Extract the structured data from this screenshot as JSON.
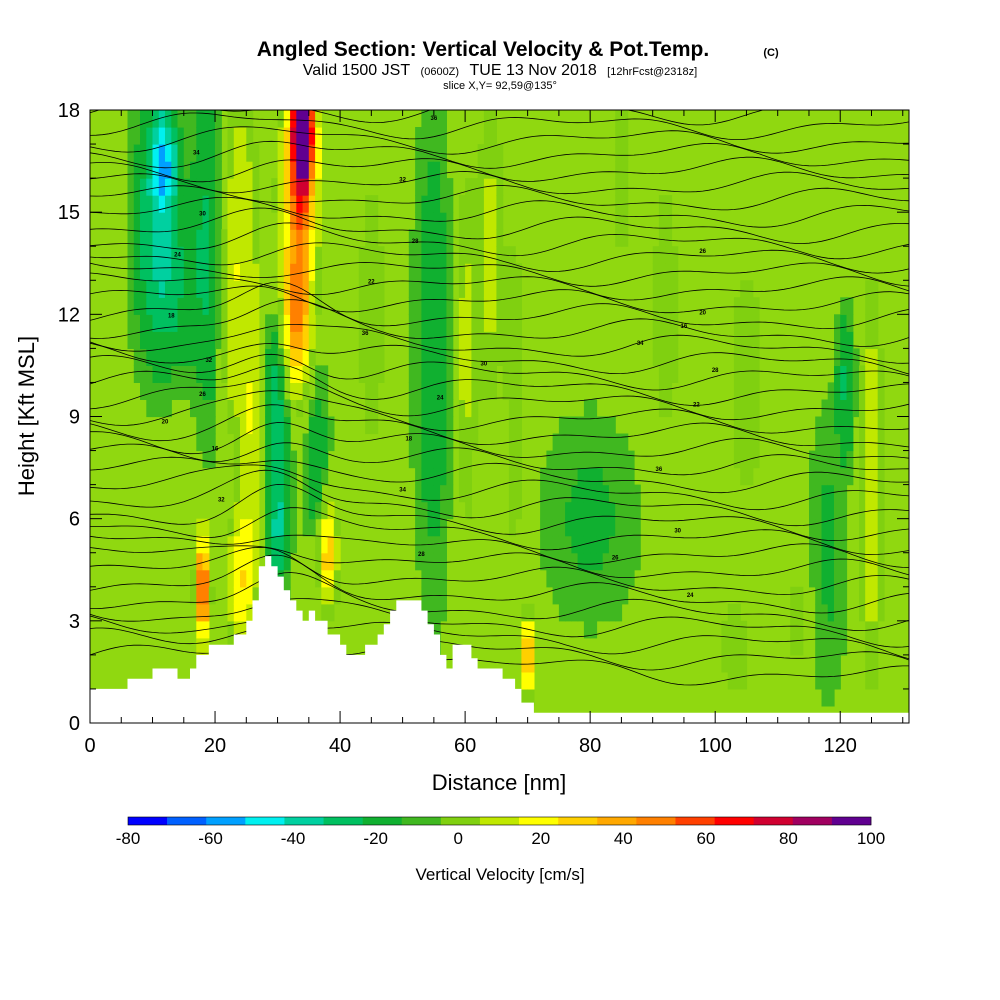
{
  "chart_data": {
    "type": "heatmap",
    "title": "Angled Section: Vertical Velocity & Pot.Temp.",
    "title_mark": "(C)",
    "subtitle": {
      "part1": "Valid 1500 JST",
      "part2": "(0600Z)",
      "part3": "TUE 13 Nov 2018",
      "part4": "[12hrFcst@2318z]"
    },
    "slice_label": "slice X,Y= 92,59@135°",
    "xlabel": "Distance [nm]",
    "ylabel": "Height [Kft MSL]",
    "xlim": [
      0,
      131
    ],
    "ylim": [
      0,
      18
    ],
    "x_ticks": [
      "0",
      "20",
      "40",
      "60",
      "80",
      "100",
      "120"
    ],
    "y_ticks": [
      "0",
      "3",
      "6",
      "9",
      "12",
      "15",
      "18"
    ],
    "colorbar": {
      "label": "Vertical Velocity [cm/s]",
      "tick_labels": [
        "-80",
        "-60",
        "-40",
        "-20",
        "0",
        "20",
        "40",
        "60",
        "80",
        "100"
      ],
      "levels": [
        -80,
        -70,
        -60,
        -50,
        -40,
        -30,
        -20,
        -10,
        0,
        10,
        20,
        30,
        40,
        50,
        60,
        70,
        80,
        90,
        100
      ],
      "colors": [
        "#0000ff",
        "#0060ff",
        "#00a0ff",
        "#00f0f0",
        "#00d0a0",
        "#00c060",
        "#10b030",
        "#40b820",
        "#80d010",
        "#c0e800",
        "#ffff00",
        "#ffd000",
        "#ffa800",
        "#ff8000",
        "#ff4000",
        "#ff0000",
        "#d00030",
        "#a00060",
        "#600090"
      ]
    },
    "background_color": "#90d810",
    "terrain_profile": [
      [
        0,
        1.0
      ],
      [
        6,
        1.0
      ],
      [
        6,
        1.3
      ],
      [
        10,
        1.3
      ],
      [
        10,
        1.6
      ],
      [
        14,
        1.6
      ],
      [
        14,
        1.3
      ],
      [
        16,
        1.3
      ],
      [
        16,
        1.6
      ],
      [
        17,
        1.6
      ],
      [
        17,
        2.0
      ],
      [
        19,
        2.0
      ],
      [
        19,
        2.3
      ],
      [
        23,
        2.3
      ],
      [
        23,
        2.6
      ],
      [
        25,
        2.6
      ],
      [
        25,
        3.0
      ],
      [
        26,
        3.0
      ],
      [
        26,
        3.6
      ],
      [
        27,
        3.6
      ],
      [
        27,
        4.6
      ],
      [
        28,
        4.6
      ],
      [
        28,
        4.9
      ],
      [
        29,
        4.9
      ],
      [
        29,
        4.6
      ],
      [
        30,
        4.6
      ],
      [
        30,
        4.3
      ],
      [
        31,
        4.3
      ],
      [
        31,
        3.9
      ],
      [
        32,
        3.9
      ],
      [
        32,
        3.6
      ],
      [
        33,
        3.6
      ],
      [
        33,
        3.3
      ],
      [
        34,
        3.3
      ],
      [
        34,
        3.0
      ],
      [
        35,
        3.0
      ],
      [
        35,
        3.3
      ],
      [
        36,
        3.3
      ],
      [
        36,
        3.0
      ],
      [
        38,
        3.0
      ],
      [
        38,
        2.6
      ],
      [
        40,
        2.6
      ],
      [
        40,
        2.3
      ],
      [
        41,
        2.3
      ],
      [
        41,
        2.0
      ],
      [
        44,
        2.0
      ],
      [
        44,
        2.3
      ],
      [
        46,
        2.3
      ],
      [
        46,
        2.6
      ],
      [
        47,
        2.6
      ],
      [
        47,
        2.9
      ],
      [
        48,
        2.9
      ],
      [
        48,
        3.3
      ],
      [
        49,
        3.3
      ],
      [
        49,
        3.6
      ],
      [
        53,
        3.6
      ],
      [
        53,
        3.3
      ],
      [
        54,
        3.3
      ],
      [
        54,
        2.9
      ],
      [
        55,
        2.9
      ],
      [
        55,
        2.6
      ],
      [
        56,
        2.6
      ],
      [
        56,
        2.0
      ],
      [
        57,
        2.0
      ],
      [
        57,
        1.6
      ],
      [
        58,
        1.6
      ],
      [
        58,
        2.3
      ],
      [
        61,
        2.3
      ],
      [
        61,
        1.9
      ],
      [
        62,
        1.9
      ],
      [
        62,
        1.6
      ],
      [
        66,
        1.6
      ],
      [
        66,
        1.3
      ],
      [
        68,
        1.3
      ],
      [
        68,
        1.0
      ],
      [
        69,
        1.0
      ],
      [
        69,
        0.6
      ],
      [
        71,
        0.6
      ],
      [
        71,
        0.3
      ],
      [
        131,
        0.3
      ],
      [
        131,
        0
      ]
    ],
    "contour_labels": [
      "36",
      "34",
      "32",
      "30",
      "28",
      "26",
      "24",
      "22",
      "20",
      "18",
      "16"
    ]
  }
}
